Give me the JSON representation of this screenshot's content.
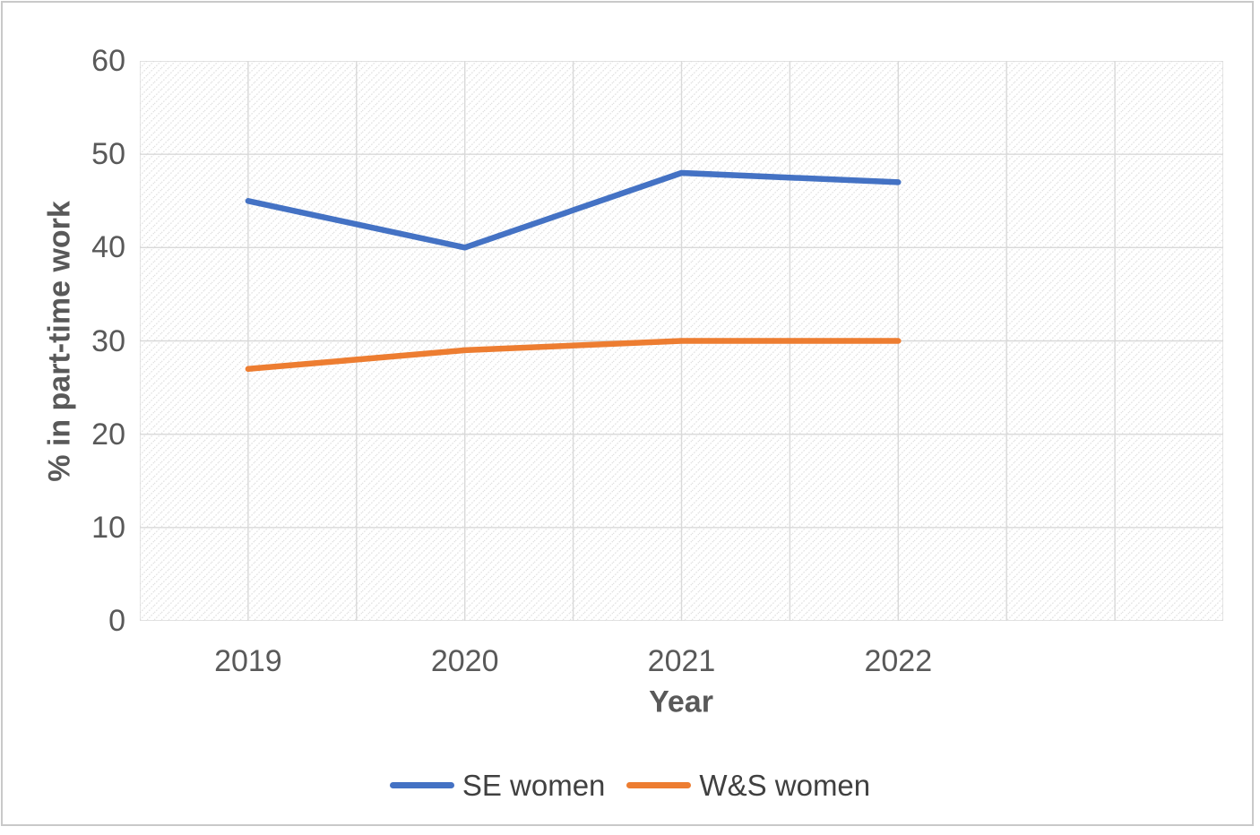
{
  "frame": {
    "background": "#ffffff",
    "border_color": "#c9c9c9"
  },
  "chart_data": {
    "type": "line",
    "title": "",
    "xlabel": "Year",
    "ylabel": "% in part-time work",
    "categories": [
      "2019",
      "2020",
      "2021",
      "2022"
    ],
    "series": [
      {
        "name": "SE women",
        "color": "#4472C4",
        "values": [
          45,
          40,
          48,
          47
        ]
      },
      {
        "name": "W&S women",
        "color": "#ED7D31",
        "values": [
          27,
          29,
          30,
          30
        ]
      }
    ],
    "ylim": [
      0,
      60
    ],
    "y_tick_step": 10,
    "y_tick_labels": [
      "0",
      "10",
      "20",
      "30",
      "40",
      "50",
      "60"
    ],
    "x_gridline_divisions": 10,
    "grid": true,
    "legend_position": "bottom",
    "plot_background": "diagonal-hatch",
    "axis_text_color": "#595959",
    "gridline_color": "#d9d9d9",
    "hatch_color": "#e2e2e2",
    "line_width": 6.5
  }
}
